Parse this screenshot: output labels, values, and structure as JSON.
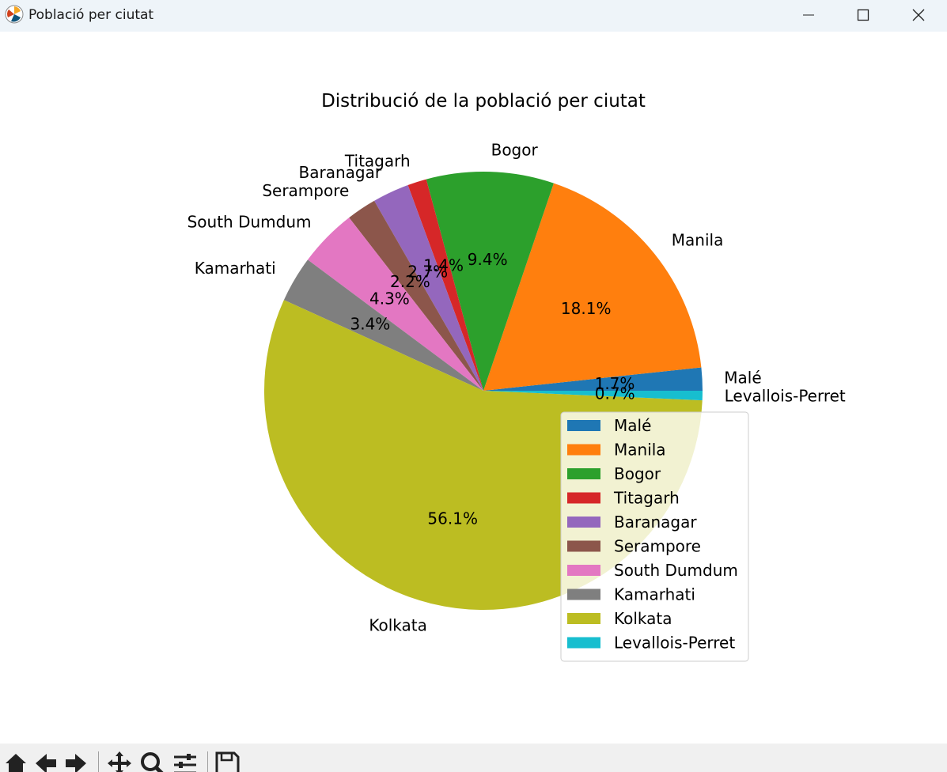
{
  "window": {
    "title": "Població per ciutat",
    "controls": [
      "minimize",
      "maximize",
      "close"
    ]
  },
  "toolbar": {
    "buttons": [
      "home-icon",
      "back-icon",
      "forward-icon",
      "pan-icon",
      "zoom-icon",
      "configure-subplots-icon",
      "save-icon"
    ]
  },
  "chart_data": {
    "type": "pie",
    "title": "Distribució de la població per ciutat",
    "labels": [
      "Malé",
      "Manila",
      "Bogor",
      "Titagarh",
      "Baranagar",
      "Serampore",
      "South Dumdum",
      "Kamarhati",
      "Kolkata",
      "Levallois-Perret"
    ],
    "values": [
      1.7,
      18.1,
      9.4,
      1.4,
      2.7,
      2.2,
      4.3,
      3.4,
      56.1,
      0.7
    ],
    "autopct": [
      "1.7%",
      "18.1%",
      "9.4%",
      "1.4%",
      "2.7%",
      "2.2%",
      "4.3%",
      "3.4%",
      "56.1%",
      "0.7%"
    ],
    "colors": [
      "#1f77b4",
      "#ff7f0e",
      "#2ca02c",
      "#d62728",
      "#9467bd",
      "#8c564b",
      "#e377c2",
      "#7f7f7f",
      "#bcbd22",
      "#17becf"
    ],
    "start_angle": 0,
    "counterclockwise": true,
    "legend": {
      "placement": "lower right",
      "entries": [
        "Malé",
        "Manila",
        "Bogor",
        "Titagarh",
        "Baranagar",
        "Serampore",
        "South Dumdum",
        "Kamarhati",
        "Kolkata",
        "Levallois-Perret"
      ]
    }
  }
}
